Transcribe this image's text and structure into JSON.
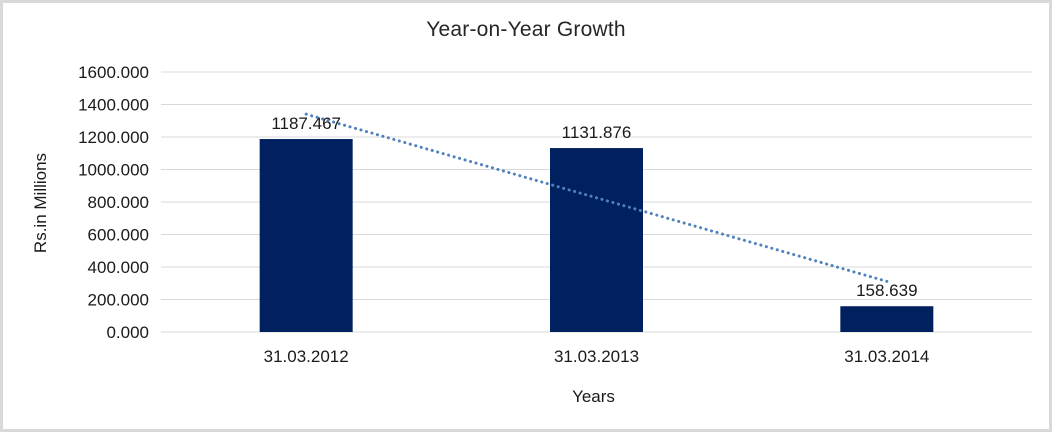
{
  "chart_data": {
    "type": "bar",
    "title": "Year-on-Year Growth",
    "categories": [
      "31.03.2012",
      "31.03.2013",
      "31.03.2014"
    ],
    "values": [
      1187.467,
      1131.876,
      158.639
    ],
    "data_labels": [
      "1187.467",
      "1131.876",
      "158.639"
    ],
    "xlabel": "Years",
    "ylabel": "Rs.in Millions",
    "ylim": [
      0,
      1600
    ],
    "ytick_step": 200,
    "ytick_labels": [
      "0.000",
      "200.000",
      "400.000",
      "600.000",
      "800.000",
      "1000.000",
      "1200.000",
      "1400.000",
      "1600.000"
    ],
    "grid": true,
    "legend": "none",
    "bar_color": "#002060",
    "grid_color": "#D9D9D9",
    "frame_border_color": "#D9D9D9",
    "text_color": "#1a1a1a",
    "trendline": {
      "type": "linear",
      "style": "dotted",
      "color": "#4F81BD"
    }
  }
}
